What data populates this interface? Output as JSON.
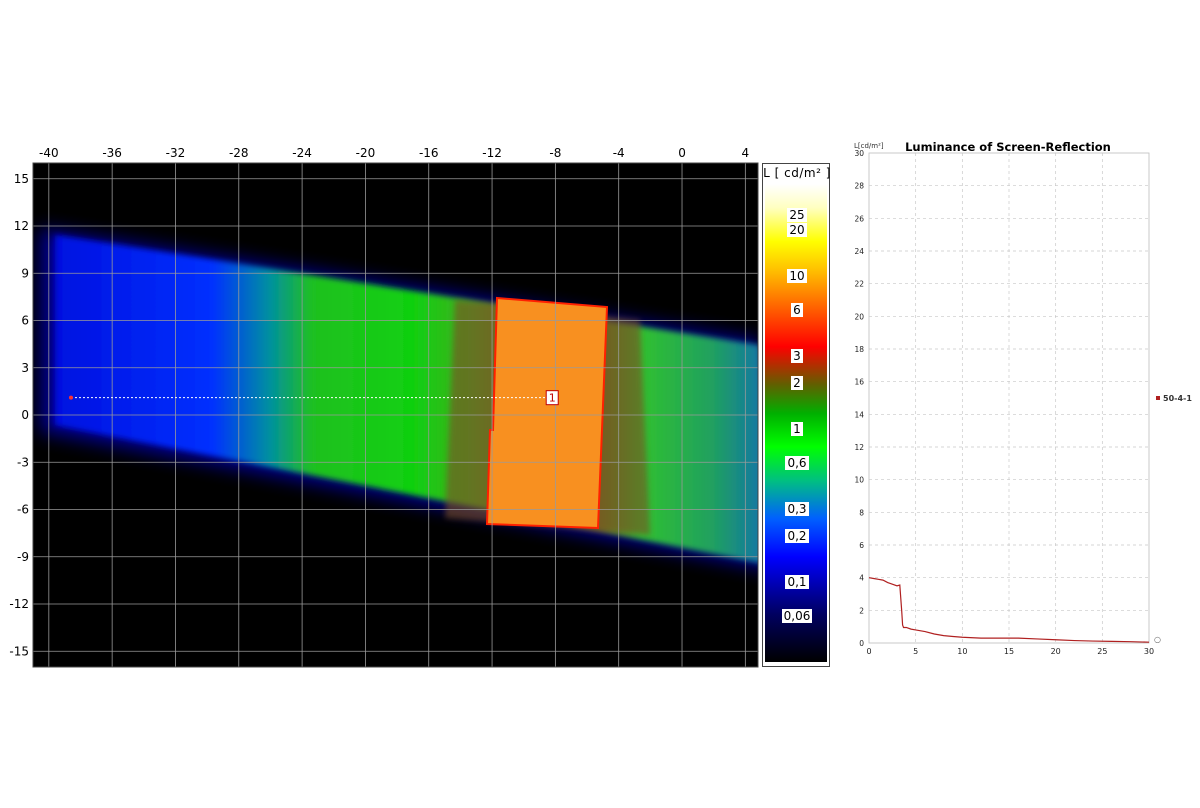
{
  "chart_data": [
    {
      "type": "heatmap",
      "x_ticks": [
        "-40",
        "-36",
        "-32",
        "-28",
        "-24",
        "-20",
        "-16",
        "-12",
        "-8",
        "-4",
        "0",
        "4"
      ],
      "y_ticks": [
        "15",
        "12",
        "9",
        "6",
        "3",
        "0",
        "-3",
        "-6",
        "-9",
        "-12",
        "-15"
      ],
      "xlim": [
        -41,
        4.8
      ],
      "ylim": [
        -16,
        16
      ],
      "grid": true,
      "measure_line": {
        "start": [
          -38.6,
          1.1
        ],
        "end": [
          -8.2,
          1.1
        ],
        "label": "1"
      },
      "colorbar": {
        "title": "L [ cd/m² ]",
        "labels": [
          "25",
          "20",
          "10",
          "6",
          "3",
          "2",
          "1",
          "0,6",
          "0,3",
          "0,2",
          "0,1",
          "0,06"
        ],
        "log_scale": true,
        "colors": [
          "#000000",
          "#000080",
          "#0000ff",
          "#00a0ff",
          "#00ff00",
          "#00a000",
          "#606000",
          "#ff0000",
          "#ff8000",
          "#ffff00",
          "#ffffc0",
          "#ffffff"
        ]
      }
    },
    {
      "type": "line",
      "title": "Luminance of Screen-Reflection",
      "ylabel": "L[cd/m²]",
      "xlim": [
        0,
        30
      ],
      "ylim": [
        0,
        30
      ],
      "x_ticks": [
        "0",
        "5",
        "10",
        "15",
        "20",
        "25",
        "30"
      ],
      "y_ticks": [
        "0",
        "2",
        "4",
        "6",
        "8",
        "10",
        "12",
        "14",
        "16",
        "18",
        "20",
        "22",
        "24",
        "26",
        "28",
        "30"
      ],
      "grid": true,
      "legend": "right",
      "series": [
        {
          "name": "50-4-1",
          "color": "#b02020",
          "x": [
            0,
            0.5,
            1,
            1.5,
            2,
            2.5,
            3,
            3.3,
            3.5,
            3.6,
            3.7,
            4,
            4.5,
            5,
            6,
            7,
            8,
            9,
            10,
            12,
            14,
            16,
            18,
            20,
            22,
            24,
            26,
            28,
            30
          ],
          "y": [
            4.0,
            3.95,
            3.9,
            3.85,
            3.7,
            3.6,
            3.5,
            3.55,
            2.0,
            1.1,
            0.95,
            0.95,
            0.85,
            0.8,
            0.7,
            0.55,
            0.45,
            0.4,
            0.35,
            0.3,
            0.3,
            0.3,
            0.25,
            0.2,
            0.15,
            0.12,
            0.1,
            0.08,
            0.05
          ]
        }
      ]
    }
  ]
}
